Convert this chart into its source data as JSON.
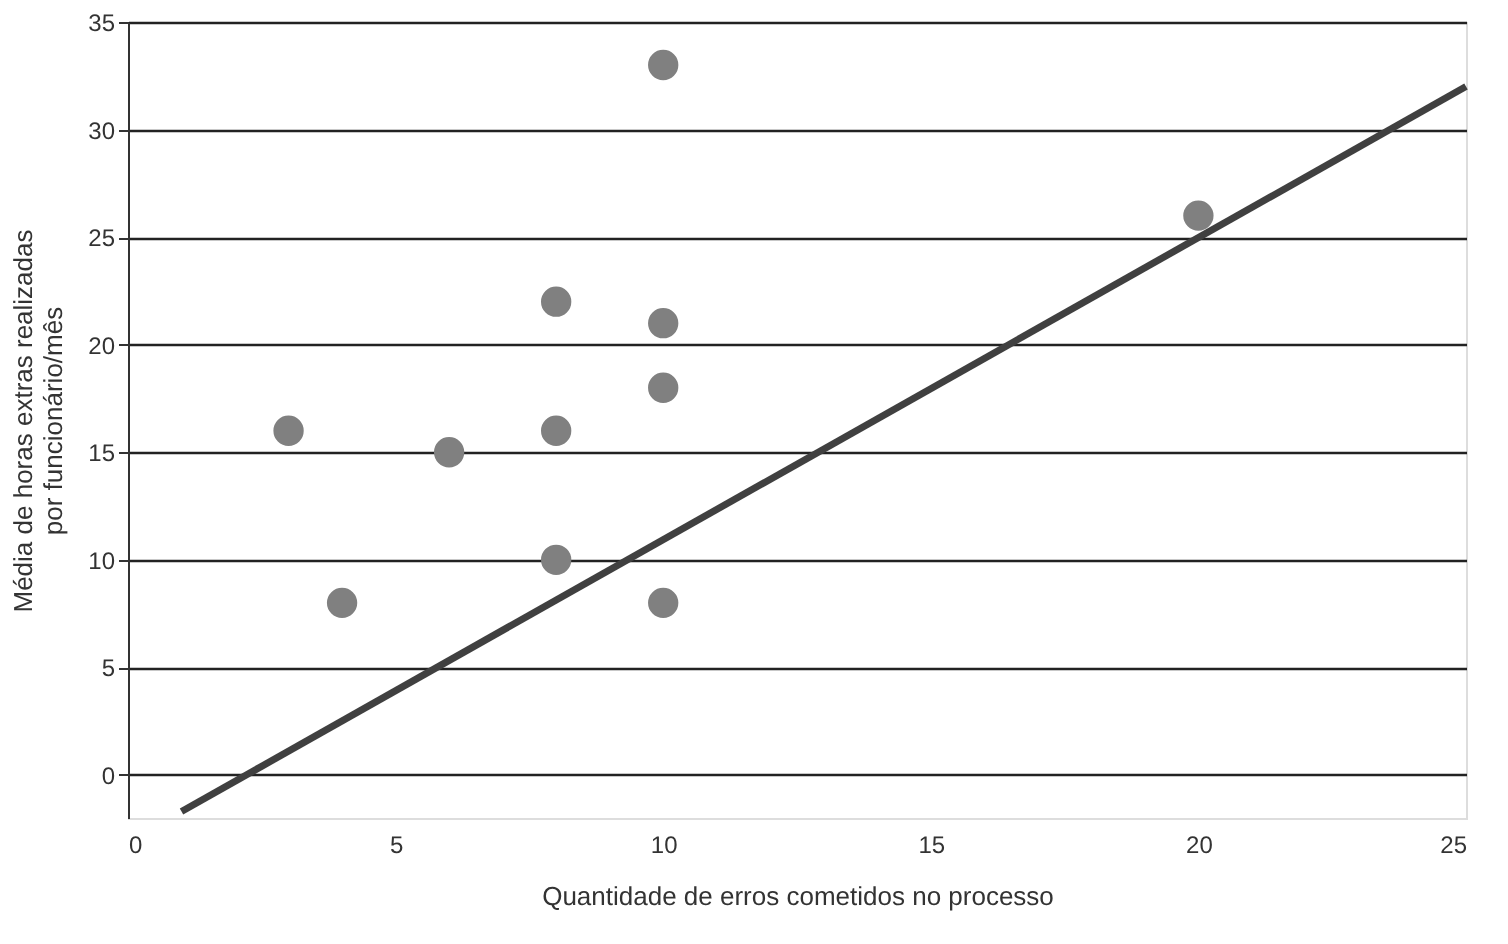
{
  "chart_data": {
    "type": "scatter",
    "xlabel": "Quantidade de erros cometidos no processo",
    "ylabel": "Média de horas extras realizadas\npor funcionário/mês",
    "series": [
      {
        "color": "#808080",
        "x": [
          3,
          4,
          6,
          8,
          8,
          8,
          10,
          10,
          10,
          10,
          20
        ],
        "values": [
          16,
          8,
          15,
          22,
          16,
          10,
          33,
          21,
          18,
          8,
          26
        ]
      },
      {
        "type": "line",
        "marker": "none",
        "color": "#404040",
        "x": [
          1,
          25
        ],
        "values": [
          -1.7,
          32
        ]
      }
    ],
    "xlim": [
      0,
      25
    ],
    "xticks": [
      0,
      5,
      10,
      15,
      20,
      25
    ],
    "ylim": [
      -2,
      35
    ],
    "yticks": [
      0,
      5,
      10,
      15,
      20,
      25,
      30,
      35
    ],
    "grid": "y",
    "marker": "circle"
  }
}
